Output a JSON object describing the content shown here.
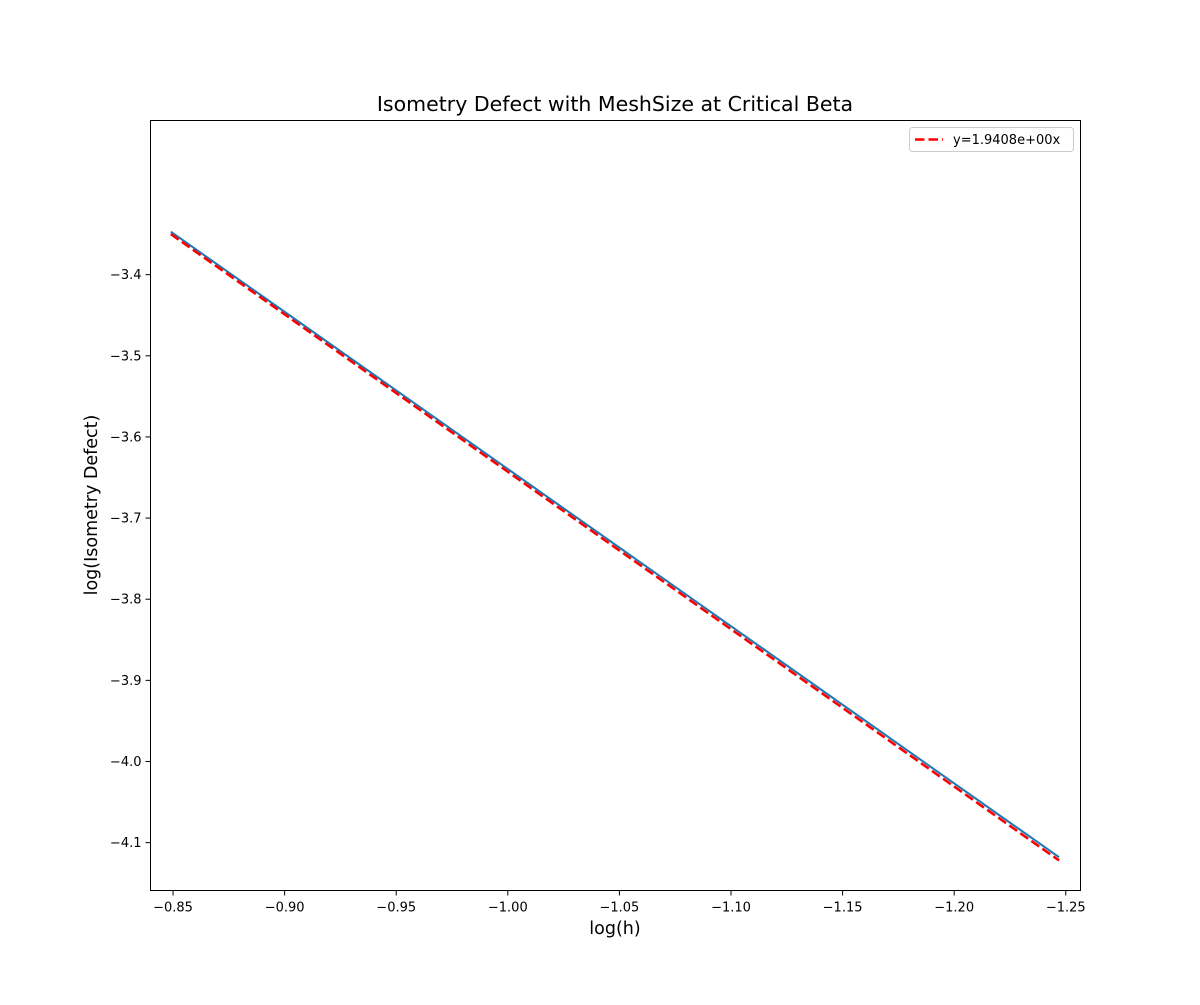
{
  "chart_data": {
    "type": "line",
    "title": "Isometry Defect with MeshSize at Critical Beta",
    "xlabel": "log(h)",
    "ylabel": "log(Isometry Defect)",
    "x_axis_inverted": true,
    "xlim": [
      -0.8399,
      -1.2566
    ],
    "ylim": [
      -4.159,
      -3.21
    ],
    "x_ticks": [
      -0.85,
      -0.9,
      -0.95,
      -1.0,
      -1.05,
      -1.1,
      -1.15,
      -1.2,
      -1.25
    ],
    "x_tick_labels": [
      "−0.85",
      "−0.90",
      "−0.95",
      "−1.00",
      "−1.05",
      "−1.10",
      "−1.15",
      "−1.20",
      "−1.25"
    ],
    "y_ticks": [
      -3.4,
      -3.5,
      -3.6,
      -3.7,
      -3.8,
      -3.9,
      -4.0,
      -4.1
    ],
    "y_tick_labels": [
      "−3.4",
      "−3.5",
      "−3.6",
      "−3.7",
      "−3.8",
      "−3.9",
      "−4.0",
      "−4.1"
    ],
    "grid": false,
    "legend_position": "top-right",
    "series": [
      {
        "style": "solid",
        "color": "#1f77b4",
        "x": [
          -0.849,
          -1.247
        ],
        "y": [
          -3.347,
          -4.118
        ]
      },
      {
        "name": "y=1.9408e+00x",
        "style": "dashed",
        "color": "#ff0000",
        "x": [
          -0.849,
          -1.247
        ],
        "y": [
          -3.35,
          -4.122
        ]
      }
    ]
  }
}
